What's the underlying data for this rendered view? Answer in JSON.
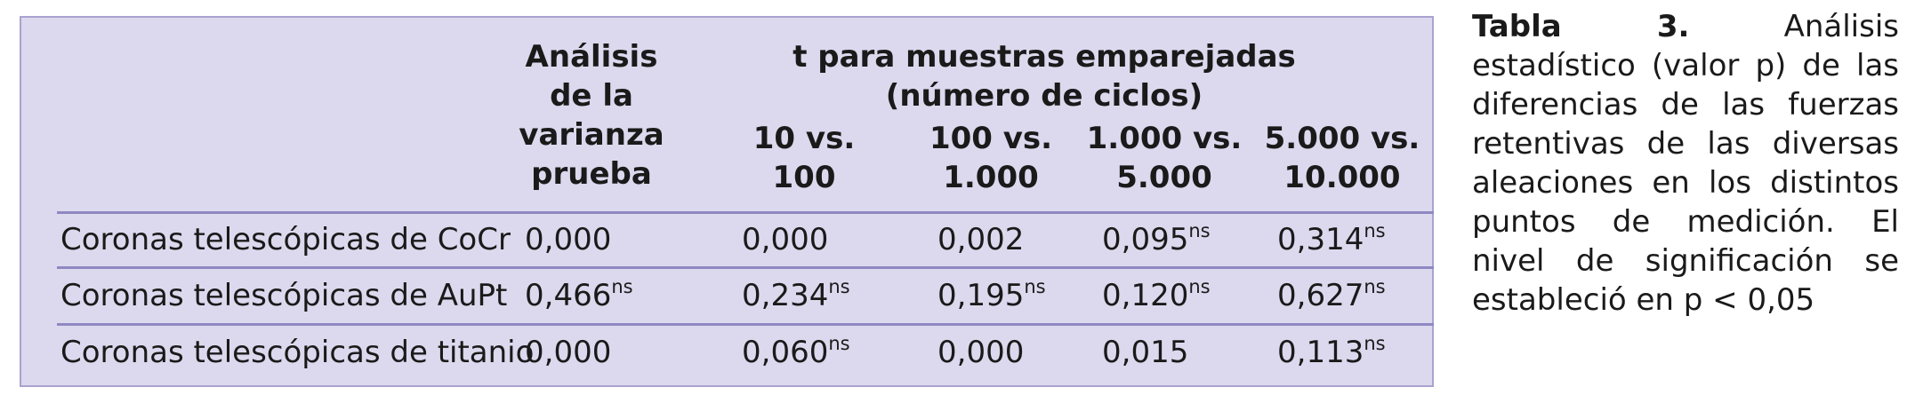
{
  "table": {
    "headers": {
      "anova": "Análisis\nde la\nvarianza\nprueba",
      "paired_t": "t para muestras emparejadas\n(número de ciclos)",
      "sub": [
        "10 vs.\n100",
        "100 vs.\n1.000",
        "1.000 vs.\n5.000",
        "5.000 vs.\n10.000"
      ]
    },
    "rows": [
      {
        "label": "Coronas telescópicas de CoCr",
        "cells": [
          {
            "v": "0,000",
            "sup": ""
          },
          {
            "v": "0,000",
            "sup": ""
          },
          {
            "v": "0,002",
            "sup": ""
          },
          {
            "v": "0,095",
            "sup": "ns"
          },
          {
            "v": "0,314",
            "sup": "ns"
          }
        ]
      },
      {
        "label": "Coronas telescópicas de AuPt",
        "cells": [
          {
            "v": "0,466",
            "sup": "ns"
          },
          {
            "v": "0,234",
            "sup": "ns"
          },
          {
            "v": "0,195",
            "sup": "ns"
          },
          {
            "v": "0,120",
            "sup": "ns"
          },
          {
            "v": "0,627",
            "sup": "ns"
          }
        ]
      },
      {
        "label": "Coronas telescópicas de titanio",
        "cells": [
          {
            "v": "0,000",
            "sup": ""
          },
          {
            "v": "0,060",
            "sup": "ns"
          },
          {
            "v": "0,000",
            "sup": ""
          },
          {
            "v": "0,015",
            "sup": ""
          },
          {
            "v": "0,113",
            "sup": "ns"
          }
        ]
      }
    ]
  },
  "caption": {
    "label": "Tabla 3.",
    "text": "Análisis estadístico (valor p) de las diferencias de las fuerzas retentivas de las di­versas aleaciones en los distin­tos puntos de medición. El nivel de significación se estableció en p < 0,05"
  }
}
